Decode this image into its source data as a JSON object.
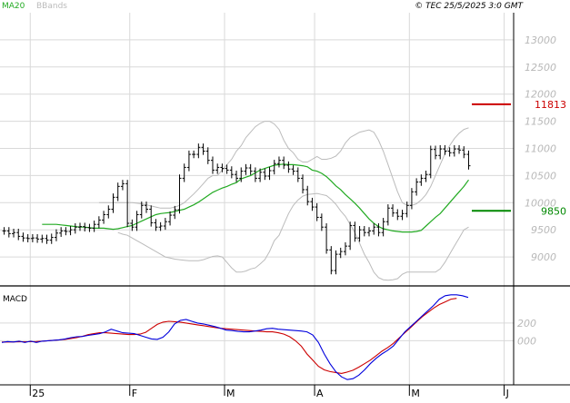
{
  "header": {
    "legend_ma": "MA20",
    "legend_bb": "BBands",
    "copyright": "© TEC 25/5/2025 3:0 GMT"
  },
  "colors": {
    "price": "#000000",
    "ma": "#22aa22",
    "bands": "#bbbbbb",
    "macd": "#0000dd",
    "signal": "#cc0000",
    "resistance": "#cc0000",
    "support": "#008800",
    "grid": "#d9d9d9",
    "axis_text": "#b8b8b8"
  },
  "chart_data": [
    {
      "type": "ohlc",
      "panel": "price",
      "ylim": [
        8500,
        13500
      ],
      "yticks": [
        "13000",
        "12500",
        "12000",
        "11500",
        "11000",
        "10500",
        "10000",
        "9500",
        "9000"
      ],
      "ytick_values": [
        13000,
        12500,
        12000,
        11500,
        11000,
        10500,
        10000,
        9500,
        9000
      ],
      "x_labels": [
        "25",
        "F",
        "M",
        "A",
        "M",
        "J"
      ],
      "x_label_index": [
        6,
        27,
        47,
        66,
        86,
        106
      ],
      "n_slots": 108,
      "levels": [
        {
          "name": "resistance",
          "value": 11813,
          "label": "11813"
        },
        {
          "name": "support",
          "value": 9850,
          "label": "9850"
        }
      ],
      "series": [
        {
          "name": "close",
          "values": [
            9480,
            9430,
            9450,
            9380,
            9350,
            9340,
            9350,
            9330,
            9340,
            9310,
            9360,
            9440,
            9480,
            9470,
            9500,
            9550,
            9560,
            9540,
            9530,
            9600,
            9680,
            9780,
            9880,
            10100,
            10300,
            10350,
            9620,
            9550,
            9780,
            9950,
            9880,
            9630,
            9550,
            9570,
            9650,
            9770,
            9870,
            10450,
            10650,
            10890,
            10890,
            11020,
            10950,
            10780,
            10600,
            10650,
            10630,
            10600,
            10520,
            10450,
            10580,
            10640,
            10580,
            10450,
            10560,
            10490,
            10590,
            10720,
            10780,
            10690,
            10620,
            10580,
            10450,
            10240,
            10020,
            9920,
            9730,
            9550,
            9130,
            8750,
            9050,
            9100,
            9200,
            9580,
            9350,
            9500,
            9450,
            9480,
            9550,
            9450,
            9650,
            9900,
            9810,
            9750,
            9800,
            9950,
            10200,
            10380,
            10450,
            10520,
            10980,
            10870,
            10990,
            10950,
            10920,
            10990,
            10970,
            10890,
            10680
          ]
        },
        {
          "name": "MA20",
          "values": [
            9600,
            9600,
            9600,
            9600,
            9590,
            9580,
            9570,
            9560,
            9550,
            9550,
            9540,
            9530,
            9530,
            9530,
            9520,
            9510,
            9520,
            9540,
            9560,
            9580,
            9620,
            9660,
            9700,
            9740,
            9780,
            9800,
            9810,
            9820,
            9840,
            9860,
            9880,
            9920,
            9960,
            10010,
            10070,
            10130,
            10190,
            10230,
            10270,
            10300,
            10340,
            10370,
            10440,
            10470,
            10500,
            10550,
            10600,
            10630,
            10660,
            10690,
            10700,
            10710,
            10700,
            10700,
            10690,
            10680,
            10660,
            10600,
            10580,
            10540,
            10480,
            10400,
            10310,
            10240,
            10150,
            10070,
            9990,
            9900,
            9800,
            9700,
            9620,
            9560,
            9520,
            9500,
            9480,
            9470,
            9460,
            9460,
            9460,
            9470,
            9490,
            9570,
            9650,
            9730,
            9800,
            9900,
            10000,
            10100,
            10200,
            10300,
            10420
          ]
        },
        {
          "name": "upper_band",
          "values": [
            10000,
            10000,
            10000,
            10000,
            10000,
            10000,
            10000,
            10000,
            9990,
            9980,
            9960,
            9940,
            9920,
            9900,
            9900,
            9900,
            9920,
            9950,
            10000,
            10080,
            10160,
            10250,
            10350,
            10450,
            10500,
            10500,
            10600,
            10700,
            10800,
            10950,
            11050,
            11200,
            11300,
            11400,
            11460,
            11500,
            11500,
            11450,
            11350,
            11150,
            11000,
            10920,
            10800,
            10750,
            10750,
            10800,
            10850,
            10800,
            10800,
            10820,
            10860,
            10950,
            11100,
            11200,
            11250,
            11300,
            11320,
            11340,
            11300,
            11150,
            10950,
            10700,
            10450,
            10200,
            10000,
            9950,
            9950,
            9980,
            10050,
            10150,
            10300,
            10500,
            10700,
            10900,
            11050,
            11180,
            11280,
            11350,
            11380
          ]
        },
        {
          "name": "lower_band",
          "values": [
            9450,
            9420,
            9400,
            9350,
            9300,
            9250,
            9200,
            9150,
            9100,
            9050,
            9000,
            8980,
            8960,
            8950,
            8940,
            8930,
            8930,
            8930,
            8950,
            8980,
            9010,
            9020,
            9000,
            8900,
            8800,
            8720,
            8720,
            8740,
            8780,
            8800,
            8870,
            8950,
            9100,
            9300,
            9400,
            9600,
            9800,
            9950,
            10050,
            10120,
            10150,
            10160,
            10170,
            10150,
            10130,
            10060,
            9970,
            9850,
            9750,
            9600,
            9450,
            9250,
            9050,
            8900,
            8720,
            8620,
            8580,
            8570,
            8580,
            8600,
            8680,
            8720,
            8720,
            8720,
            8720,
            8720,
            8720,
            8720,
            8780,
            8900,
            9050,
            9200,
            9350,
            9500,
            9550
          ]
        }
      ]
    },
    {
      "type": "line",
      "panel": "macd",
      "title": "MACD",
      "ylim": [
        -500,
        600
      ],
      "yticks": [
        "200",
        "000"
      ],
      "ytick_values": [
        200,
        0
      ],
      "series": [
        {
          "name": "macd",
          "values": [
            -20,
            -10,
            -15,
            -5,
            -20,
            -5,
            -20,
            -5,
            0,
            5,
            10,
            20,
            35,
            45,
            48,
            60,
            70,
            80,
            100,
            130,
            110,
            90,
            85,
            80,
            60,
            40,
            20,
            15,
            40,
            100,
            190,
            230,
            240,
            220,
            200,
            190,
            175,
            160,
            140,
            120,
            115,
            105,
            100,
            100,
            110,
            120,
            135,
            140,
            130,
            125,
            120,
            115,
            110,
            100,
            65,
            -20,
            -150,
            -260,
            -350,
            -410,
            -440,
            -430,
            -390,
            -330,
            -260,
            -200,
            -150,
            -110,
            -60,
            20,
            100,
            160,
            220,
            280,
            340,
            400,
            470,
            510,
            520,
            520,
            510,
            490
          ]
        },
        {
          "name": "signal",
          "values": [
            -15,
            -15,
            -14,
            -13,
            -12,
            -12,
            -10,
            -5,
            0,
            5,
            10,
            15,
            25,
            35,
            50,
            70,
            80,
            90,
            90,
            85,
            80,
            75,
            70,
            70,
            75,
            95,
            140,
            185,
            210,
            220,
            215,
            210,
            200,
            190,
            180,
            170,
            160,
            150,
            140,
            135,
            130,
            125,
            120,
            115,
            110,
            105,
            100,
            100,
            90,
            75,
            45,
            0,
            -60,
            -150,
            -220,
            -290,
            -330,
            -350,
            -360,
            -370,
            -355,
            -335,
            -300,
            -260,
            -220,
            -170,
            -120,
            -80,
            -30,
            30,
            90,
            150,
            210,
            270,
            320,
            370,
            410,
            440,
            470,
            480
          ]
        }
      ]
    }
  ]
}
